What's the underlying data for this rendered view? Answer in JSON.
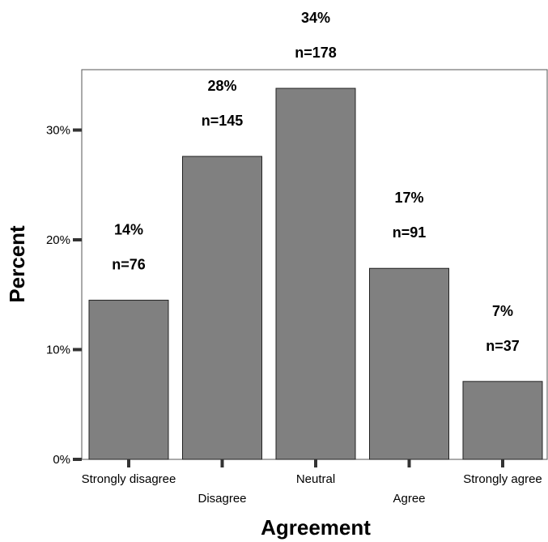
{
  "chart_data": {
    "type": "bar",
    "title": "",
    "xlabel": "Agreement",
    "ylabel": "Percent",
    "categories": [
      "Strongly disagree",
      "Disagree",
      "Neutral",
      "Agree",
      "Strongly agree"
    ],
    "values": [
      14.5,
      27.6,
      33.8,
      17.4,
      7.1
    ],
    "percent_labels": [
      "14%",
      "28%",
      "34%",
      "17%",
      "7%"
    ],
    "count_labels": [
      "n=76",
      "n=145",
      "n=178",
      "n=91",
      "n=37"
    ],
    "ylim": [
      0,
      35.5
    ],
    "yticks": [
      0,
      10,
      20,
      30
    ],
    "ytick_labels": [
      "0%",
      "10%",
      "20%",
      "30%"
    ],
    "bar_color": "#808080",
    "grid": false,
    "legend": "none"
  }
}
